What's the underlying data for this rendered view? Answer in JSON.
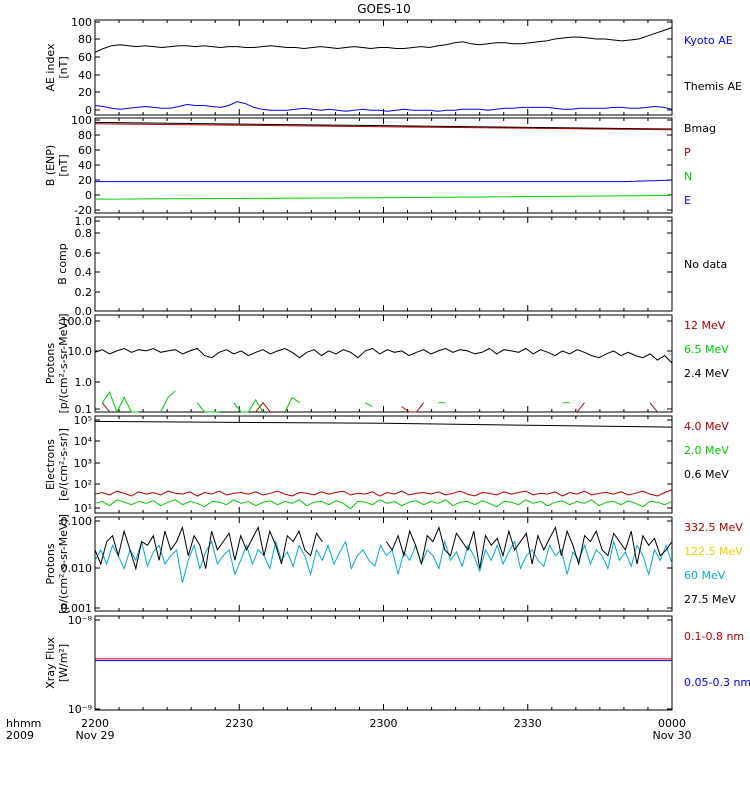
{
  "title": "GOES-10",
  "time_axis": {
    "row1_label": "hhmm",
    "row2_label": "2009",
    "ticks": [
      "2200",
      "2230",
      "2300",
      "2330",
      "0000"
    ],
    "dates": [
      "Nov 29",
      "Nov 30"
    ]
  },
  "colors": {
    "black": "#000000",
    "blue": "#0000ff",
    "red": "#b00000",
    "green": "#00cc00",
    "cyan": "#00aadd",
    "yellow": "#f0d000"
  },
  "chart_data": [
    {
      "id": "ae",
      "type": "line",
      "ylabel": [
        "AE index",
        "[nT]"
      ],
      "ylim": [
        0,
        100
      ],
      "yticks": [
        "0",
        "20",
        "40",
        "60",
        "80",
        "100"
      ],
      "legend": [
        {
          "text": "Kyoto AE",
          "color": "#0000ff"
        },
        {
          "text": "Themis AE",
          "color": "#000000"
        }
      ],
      "series": [
        {
          "name": "Themis AE",
          "color": "#000000",
          "values": [
            66,
            70,
            73,
            74,
            73,
            72,
            73,
            72,
            71,
            72,
            73,
            73,
            72,
            73,
            72,
            71,
            72,
            72,
            71,
            71,
            72,
            73,
            72,
            71,
            71,
            70,
            71,
            72,
            71,
            70,
            71,
            72,
            71,
            70,
            71,
            71,
            70,
            70,
            71,
            72,
            71,
            73,
            74,
            76,
            77,
            75,
            74,
            75,
            76,
            76,
            75,
            75,
            76,
            77,
            78,
            80,
            81,
            82,
            82,
            81,
            80,
            80,
            79,
            78,
            79,
            80,
            83,
            86,
            89,
            92
          ]
        },
        {
          "name": "Kyoto AE",
          "color": "#0000ff",
          "values": [
            10,
            9,
            7,
            6,
            7,
            8,
            9,
            8,
            7,
            7,
            9,
            11,
            10,
            10,
            9,
            8,
            10,
            14,
            12,
            8,
            6,
            5,
            5,
            5,
            6,
            7,
            6,
            5,
            6,
            5,
            4,
            5,
            6,
            5,
            5,
            4,
            5,
            6,
            5,
            5,
            5,
            4,
            5,
            5,
            6,
            6,
            6,
            5,
            6,
            7,
            7,
            8,
            8,
            8,
            8,
            7,
            6,
            6,
            7,
            7,
            7,
            7,
            8,
            8,
            7,
            7,
            8,
            9,
            8,
            6
          ]
        }
      ]
    },
    {
      "id": "bfield",
      "type": "line",
      "ylabel": [
        "B (ENP)",
        "[nT]"
      ],
      "ylim": [
        -25,
        105
      ],
      "yticks": [
        "-20",
        "0",
        "20",
        "40",
        "60",
        "80",
        "100"
      ],
      "legend": [
        {
          "text": "Bmag",
          "color": "#000000"
        },
        {
          "text": "P",
          "color": "#b00000"
        },
        {
          "text": "N",
          "color": "#00cc00"
        },
        {
          "text": "E",
          "color": "#0000ff"
        }
      ],
      "series": [
        {
          "name": "Bmag",
          "color": "#000000",
          "x": [
            0,
            120
          ],
          "values": [
            99,
            90
          ]
        },
        {
          "name": "P",
          "color": "#b00000",
          "x": [
            0,
            120
          ],
          "values": [
            97,
            89
          ]
        },
        {
          "name": "N",
          "color": "#00cc00",
          "x": [
            0,
            60,
            120
          ],
          "values": [
            -6,
            -4,
            -1
          ]
        },
        {
          "name": "E",
          "color": "#0000ff",
          "x": [
            0,
            110,
            120
          ],
          "values": [
            18,
            18,
            20
          ]
        }
      ]
    },
    {
      "id": "bcomp",
      "type": "line",
      "ylabel": [
        "B comp"
      ],
      "ylim": [
        0,
        1
      ],
      "yticks": [
        "0.0",
        "0.2",
        "0.4",
        "0.6",
        "0.8",
        "1.0"
      ],
      "legend": [
        {
          "text": "No data",
          "color": "#000000"
        }
      ],
      "series": []
    },
    {
      "id": "protons_low",
      "type": "line",
      "scale": "log",
      "ylabel": [
        "Protons",
        "[p/(cm²-s-sr-MeV)]"
      ],
      "ylim": [
        0.1,
        150
      ],
      "yticks": [
        "0.1",
        "1.0",
        "10.0",
        "100.0"
      ],
      "legend": [
        {
          "text": "12 MeV",
          "color": "#b00000"
        },
        {
          "text": "6.5 MeV",
          "color": "#00cc00"
        },
        {
          "text": "2.4 MeV",
          "color": "#000000"
        }
      ],
      "series": [
        {
          "name": "2.4 MeV",
          "color": "#000000",
          "values": [
            9,
            11,
            8,
            10,
            12,
            9,
            11,
            10,
            12,
            9,
            10,
            11,
            8,
            10,
            12,
            7,
            6,
            9,
            11,
            8,
            10,
            7,
            9,
            11,
            8,
            10,
            12,
            9,
            6,
            9,
            11,
            7,
            10,
            8,
            11,
            9,
            6,
            10,
            12,
            8,
            11,
            9,
            10,
            7,
            9,
            11,
            8,
            10,
            12,
            9,
            11,
            10,
            8,
            9,
            12,
            8,
            11,
            10,
            9,
            12,
            8,
            11,
            9,
            7,
            10,
            8,
            11,
            9,
            7,
            6,
            8,
            10,
            7,
            9,
            7,
            6,
            8,
            5,
            7,
            4
          ]
        },
        {
          "name": "6.5 MeV",
          "color": "#00cc00",
          "values": [
            null,
            0.2,
            0.45,
            0.1,
            0.3,
            0.1,
            0.1,
            null,
            null,
            0.1,
            0.3,
            0.5,
            null,
            null,
            0.2,
            0.1,
            0.1,
            0.1,
            null,
            0.2,
            0.1,
            0.1,
            0.25,
            0.1,
            null,
            null,
            0.1,
            0.3,
            0.2,
            null,
            null,
            null,
            null,
            null,
            null,
            null,
            null,
            0.2,
            0.15,
            null,
            null,
            null,
            null,
            null,
            null,
            null,
            null,
            0.2,
            0.2,
            null,
            null,
            0.3,
            null,
            null,
            null,
            null,
            0.1,
            null,
            0.2,
            null,
            null,
            null,
            null,
            null,
            0.2,
            0.2,
            null,
            null,
            null,
            null,
            null,
            null,
            0.1,
            null,
            null,
            null,
            null,
            null,
            null,
            0.1
          ]
        },
        {
          "name": "12 MeV",
          "color": "#b00000",
          "values": [
            null,
            0.2,
            0.1,
            null,
            null,
            null,
            null,
            null,
            null,
            null,
            null,
            null,
            null,
            null,
            null,
            null,
            null,
            null,
            null,
            null,
            null,
            null,
            0.1,
            0.2,
            0.1,
            null,
            null,
            null,
            null,
            null,
            null,
            null,
            null,
            null,
            null,
            null,
            null,
            null,
            null,
            null,
            null,
            null,
            0.15,
            0.1,
            0.1,
            0.2,
            null,
            null,
            null,
            null,
            null,
            null,
            null,
            null,
            null,
            null,
            null,
            null,
            null,
            null,
            null,
            null,
            null,
            null,
            null,
            null,
            0.1,
            0.2,
            null,
            null,
            null,
            null,
            null,
            null,
            null,
            null,
            0.2,
            0.1,
            null,
            null
          ]
        }
      ]
    },
    {
      "id": "electrons",
      "type": "line",
      "scale": "log",
      "ylabel": [
        "Electrons",
        "[e/(cm²-s-sr)]"
      ],
      "ylim": [
        10,
        100000
      ],
      "yticks": [
        "10¹",
        "10²",
        "10³",
        "10⁴",
        "10⁵"
      ],
      "legend": [
        {
          "text": "4.0 MeV",
          "color": "#b00000"
        },
        {
          "text": "2.0 MeV",
          "color": "#00cc00"
        },
        {
          "text": "0.6 MeV",
          "color": "#000000"
        }
      ],
      "series": [
        {
          "name": "0.6 MeV",
          "color": "#000000",
          "x": [
            0,
            60,
            120
          ],
          "values": [
            60000,
            50000,
            35000
          ]
        },
        {
          "name": "4.0 MeV",
          "color": "#b00000",
          "values": [
            60,
            70,
            55,
            80,
            65,
            50,
            75,
            60,
            70,
            55,
            80,
            65,
            60,
            75,
            50,
            70,
            60,
            80,
            55,
            65,
            70,
            60,
            75,
            55,
            65,
            80,
            60,
            50,
            70,
            65,
            55,
            75,
            60,
            70,
            80,
            55,
            65,
            60,
            75,
            50,
            70,
            60,
            80,
            55,
            65,
            70,
            60,
            75,
            55,
            65,
            80,
            60,
            50,
            70,
            65,
            55,
            75,
            60,
            70,
            80,
            55,
            65,
            60,
            75,
            50,
            70,
            60,
            80,
            55,
            65,
            70,
            60,
            75,
            55,
            65,
            80,
            60,
            50,
            70,
            90
          ]
        },
        {
          "name": "2.0 MeV",
          "color": "#00cc00",
          "values": [
            25,
            30,
            20,
            35,
            28,
            22,
            30,
            25,
            32,
            20,
            28,
            35,
            22,
            30,
            25,
            18,
            30,
            28,
            22,
            35,
            25,
            30,
            20,
            28,
            32,
            22,
            30,
            25,
            35,
            20,
            28,
            30,
            22,
            32,
            25,
            15,
            30,
            28,
            22,
            35,
            25,
            30,
            20,
            28,
            32,
            22,
            30,
            25,
            35,
            20,
            28,
            30,
            22,
            32,
            25,
            18,
            30,
            28,
            22,
            35,
            25,
            30,
            20,
            28,
            32,
            22,
            30,
            25,
            35,
            20,
            28,
            30,
            22,
            32,
            25,
            18,
            30,
            28,
            22,
            30
          ]
        }
      ]
    },
    {
      "id": "protons_high",
      "type": "line",
      "scale": "log",
      "ylabel": [
        "Protons",
        "[p/(cm²-s-sr-MeV)]"
      ],
      "ylim": [
        0.001,
        0.1
      ],
      "yticks": [
        "0.001",
        "0.010",
        "0.100"
      ],
      "legend": [
        {
          "text": "332.5 MeV",
          "color": "#b00000"
        },
        {
          "text": "122.5 MeV",
          "color": "#f0d000"
        },
        {
          "text": "60 MeV",
          "color": "#00aadd"
        },
        {
          "text": "27.5 MeV",
          "color": "#000000"
        }
      ],
      "series": [
        {
          "name": "60 MeV",
          "color": "#00aadd",
          "values": [
            0.012,
            0.02,
            0.01,
            0.025,
            0.015,
            0.008,
            0.02,
            0.012,
            0.03,
            0.009,
            0.018,
            0.025,
            0.01,
            0.015,
            0.02,
            0.004,
            0.012,
            0.025,
            0.008,
            0.018,
            0.03,
            0.01,
            0.015,
            0.02,
            0.006,
            0.012,
            0.025,
            0.01,
            0.02,
            0.015,
            0.008,
            0.03,
            0.012,
            0.018,
            0.009,
            0.025,
            0.015,
            0.006,
            0.02,
            0.012,
            0.025,
            0.01,
            0.018,
            0.03,
            0.008,
            0.015,
            0.02,
            0.012,
            0.009,
            0.025,
            0.015,
            0.02,
            0.006,
            0.018,
            0.012,
            0.025,
            0.01,
            0.02,
            0.015,
            0.008,
            0.03,
            0.012,
            0.018,
            0.009,
            0.025,
            0.015,
            0.007,
            0.02,
            0.012,
            0.025,
            0.01,
            0.018,
            0.03,
            0.008,
            0.015,
            0.02,
            0.012,
            0.009,
            0.025,
            0.015,
            0.02,
            0.006,
            0.018,
            0.012,
            0.025,
            0.01,
            0.02,
            0.015,
            0.008,
            0.03,
            0.012,
            0.018,
            0.009,
            0.025,
            0.015,
            0.006,
            0.02,
            0.012,
            0.025,
            0.01
          ]
        },
        {
          "name": "27.5 MeV",
          "color": "#000000",
          "values": [
            0.02,
            0.01,
            0.03,
            0.04,
            0.015,
            0.05,
            0.02,
            0.008,
            0.03,
            0.025,
            0.04,
            0.012,
            0.05,
            0.02,
            0.03,
            0.06,
            0.015,
            0.04,
            0.025,
            0.008,
            0.05,
            0.02,
            0.03,
            0.045,
            0.012,
            0.04,
            0.02,
            0.035,
            0.06,
            0.015,
            0.05,
            0.025,
            0.01,
            0.04,
            0.03,
            0.05,
            0.02,
            0.015,
            0.045,
            0.03,
            null,
            null,
            null,
            null,
            null,
            null,
            null,
            null,
            null,
            null,
            0.03,
            0.02,
            0.04,
            0.015,
            0.05,
            0.025,
            0.01,
            0.04,
            0.03,
            0.06,
            0.02,
            0.015,
            0.045,
            0.03,
            0.02,
            0.05,
            0.008,
            0.04,
            0.025,
            0.035,
            0.015,
            0.05,
            0.02,
            0.03,
            0.045,
            0.01,
            0.04,
            0.02,
            0.035,
            0.06,
            0.015,
            0.05,
            0.025,
            0.01,
            0.04,
            0.03,
            0.05,
            0.02,
            0.015,
            0.045,
            0.03,
            0.02,
            0.05,
            0.01,
            0.04,
            0.025,
            0.035,
            0.015,
            0.02,
            0.03
          ]
        }
      ]
    },
    {
      "id": "xray",
      "type": "line",
      "scale": "log",
      "ylabel": [
        "Xray Flux",
        "[W/m²]"
      ],
      "ylim": [
        1e-09,
        1e-08
      ],
      "yticks": [
        "10⁻⁹",
        "10⁻⁸"
      ],
      "legend": [
        {
          "text": "0.1-0.8 nm",
          "color": "#b00000"
        },
        {
          "text": "0.05-0.3 nm",
          "color": "#0000ff"
        }
      ],
      "series": [
        {
          "name": "0.1-0.8 nm",
          "color": "#b00000",
          "x": [
            0,
            120
          ],
          "values": [
            3.5e-09,
            3.5e-09
          ]
        },
        {
          "name": "0.05-0.3 nm",
          "color": "#0000ff",
          "x": [
            0,
            120
          ],
          "values": [
            3.35e-09,
            3.35e-09
          ]
        }
      ]
    }
  ]
}
